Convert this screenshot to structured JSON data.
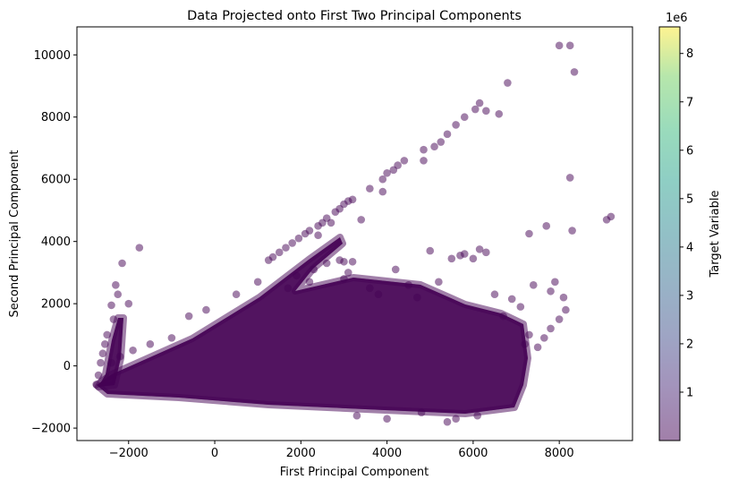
{
  "chart_data": {
    "type": "scatter",
    "title": "Data Projected onto First Two Principal Components",
    "xlabel": "First Principal Component",
    "ylabel": "Second Principal Component",
    "xlim": [
      -3200,
      9700
    ],
    "ylim": [
      -2400,
      10900
    ],
    "xticks": [
      -2000,
      0,
      2000,
      4000,
      6000,
      8000
    ],
    "yticks": [
      -2000,
      0,
      2000,
      4000,
      6000,
      8000,
      10000
    ],
    "xtick_labels": [
      "−2000",
      "0",
      "2000",
      "4000",
      "6000",
      "8000"
    ],
    "ytick_labels": [
      "−2000",
      "0",
      "2000",
      "4000",
      "6000",
      "8000",
      "10000"
    ],
    "grid": false,
    "point_color": "#440154",
    "point_alpha": 0.5,
    "colorbar": {
      "label": "Target Variable",
      "multiplier": "1e6",
      "ticks": [
        1,
        2,
        3,
        4,
        5,
        6,
        7,
        8
      ],
      "tick_labels": [
        "1",
        "2",
        "3",
        "4",
        "5",
        "6",
        "7",
        "8"
      ],
      "range": [
        0,
        8.55
      ],
      "colormap": "viridis",
      "alpha": 0.5
    },
    "points": [
      [
        8000,
        10300
      ],
      [
        8250,
        10300
      ],
      [
        8350,
        9450
      ],
      [
        6800,
        9100
      ],
      [
        6150,
        8450
      ],
      [
        6050,
        8250
      ],
      [
        5800,
        8000
      ],
      [
        5600,
        7750
      ],
      [
        5400,
        7450
      ],
      [
        5250,
        7200
      ],
      [
        5100,
        7050
      ],
      [
        4850,
        6950
      ],
      [
        4850,
        6600
      ],
      [
        4400,
        6600
      ],
      [
        4250,
        6450
      ],
      [
        4150,
        6300
      ],
      [
        4000,
        6200
      ],
      [
        3900,
        6000
      ],
      [
        3600,
        5700
      ],
      [
        3200,
        5350
      ],
      [
        3100,
        5300
      ],
      [
        3000,
        5200
      ],
      [
        2900,
        5050
      ],
      [
        2800,
        4950
      ],
      [
        2600,
        4750
      ],
      [
        2500,
        4600
      ],
      [
        2400,
        4500
      ],
      [
        2200,
        4350
      ],
      [
        2100,
        4250
      ],
      [
        1950,
        4100
      ],
      [
        1800,
        3950
      ],
      [
        1650,
        3800
      ],
      [
        1500,
        3650
      ],
      [
        1350,
        3500
      ],
      [
        1250,
        3400
      ],
      [
        6600,
        8100
      ],
      [
        6300,
        8200
      ],
      [
        3900,
        5600
      ],
      [
        3400,
        4700
      ],
      [
        2700,
        4600
      ],
      [
        2400,
        4200
      ],
      [
        9100,
        4700
      ],
      [
        9200,
        4800
      ],
      [
        8250,
        6050
      ],
      [
        8300,
        4350
      ],
      [
        7700,
        4500
      ],
      [
        7300,
        4250
      ],
      [
        -1750,
        3800
      ],
      [
        -2150,
        3300
      ],
      [
        -2300,
        2600
      ],
      [
        -2250,
        2300
      ],
      [
        -2000,
        2000
      ],
      [
        -2400,
        1950
      ],
      [
        -2350,
        1500
      ],
      [
        -2500,
        1000
      ],
      [
        -2550,
        700
      ],
      [
        -2600,
        400
      ],
      [
        -2650,
        100
      ],
      [
        -2700,
        -300
      ],
      [
        -2750,
        -600
      ],
      [
        2900,
        3400
      ],
      [
        3000,
        3350
      ],
      [
        3200,
        3350
      ],
      [
        5700,
        3550
      ],
      [
        6150,
        3750
      ],
      [
        5500,
        3450
      ],
      [
        5800,
        3600
      ],
      [
        6000,
        3450
      ],
      [
        6300,
        3650
      ],
      [
        5000,
        3700
      ],
      [
        4200,
        3100
      ],
      [
        4500,
        2600
      ],
      [
        7900,
        2700
      ],
      [
        7400,
        2600
      ],
      [
        7800,
        2400
      ],
      [
        8100,
        2200
      ],
      [
        8150,
        1800
      ],
      [
        8000,
        1500
      ],
      [
        7800,
        1200
      ],
      [
        7650,
        900
      ],
      [
        7300,
        1000
      ],
      [
        7500,
        600
      ],
      [
        7200,
        700
      ],
      [
        5400,
        -1800
      ],
      [
        5600,
        -1700
      ],
      [
        4800,
        -1500
      ],
      [
        4000,
        -1700
      ],
      [
        3300,
        -1600
      ],
      [
        6100,
        -1600
      ],
      [
        3800,
        2300
      ],
      [
        3600,
        2500
      ],
      [
        2200,
        2700
      ],
      [
        1900,
        2900
      ],
      [
        2600,
        3300
      ],
      [
        2300,
        3100
      ],
      [
        4700,
        2200
      ],
      [
        5200,
        2700
      ],
      [
        6500,
        2300
      ],
      [
        6900,
        2150
      ],
      [
        7100,
        1900
      ],
      [
        6700,
        1600
      ],
      [
        3000,
        2800
      ],
      [
        3100,
        3000
      ],
      [
        1700,
        2500
      ],
      [
        1000,
        2700
      ],
      [
        500,
        2300
      ],
      [
        -200,
        1800
      ],
      [
        -600,
        1600
      ],
      [
        -1000,
        900
      ],
      [
        -1500,
        700
      ],
      [
        -1900,
        500
      ],
      [
        -2200,
        300
      ],
      [
        -2400,
        100
      ]
    ]
  }
}
